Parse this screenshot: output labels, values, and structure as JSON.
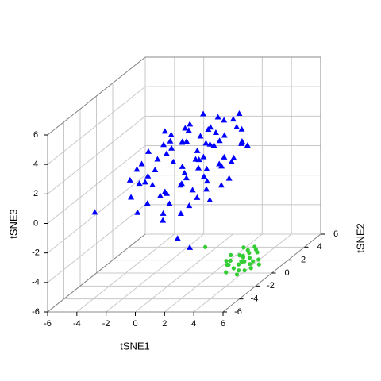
{
  "chart_data": {
    "type": "scatter3d",
    "xlabel": "tSNE1",
    "ylabel": "tSNE2",
    "zlabel": "tSNE3",
    "xlim": [
      -6,
      6
    ],
    "ylim": [
      -6,
      6
    ],
    "zlim": [
      -6,
      6
    ],
    "xticks": [
      -6,
      -4,
      -2,
      0,
      2,
      4,
      6
    ],
    "yticks": [
      -6,
      -4,
      -2,
      0,
      2,
      4,
      6
    ],
    "zticks": [
      -6,
      -4,
      -2,
      0,
      2,
      4,
      6
    ],
    "grid": true,
    "series": [
      {
        "color": "#0000ff",
        "marker": "triangle",
        "x": [
          -2.1,
          -1.5,
          -0.8,
          0.3,
          1.2,
          2.0,
          2.8,
          -3.0,
          -2.5,
          -1.0,
          0.0,
          0.9,
          1.8,
          3.1,
          -1.8,
          -0.5,
          0.6,
          1.5,
          2.4,
          -2.8,
          -1.2,
          0.2,
          1.0,
          2.2,
          3.3,
          -3.4,
          -2.0,
          -0.3,
          0.8,
          1.6,
          2.6,
          -1.6,
          -0.9,
          0.4,
          1.3,
          2.1,
          -2.3,
          -0.1,
          1.1,
          2.9,
          -3.2,
          -1.4,
          0.5,
          1.9,
          3.0,
          -2.6,
          -0.7,
          0.7,
          1.4,
          2.5,
          -1.9,
          -0.4,
          0.1,
          1.7,
          2.3,
          -2.9,
          -1.1,
          0.9,
          2.7,
          3.5,
          -5.0,
          -2.2,
          -0.6,
          1.0,
          2.0,
          2.4,
          2.8,
          -1.3,
          0.3,
          1.6,
          -0.2,
          1.2,
          -2.4,
          0.6,
          1.8,
          -1.7,
          0.0,
          2.2,
          -0.8,
          1.5
        ],
        "y": [
          0.5,
          -1.2,
          2.0,
          -0.5,
          1.5,
          -2.0,
          0.8,
          1.0,
          -0.3,
          2.5,
          -1.8,
          0.2,
          2.8,
          -1.0,
          -2.5,
          1.2,
          -0.8,
          2.2,
          0.0,
          -1.5,
          0.6,
          2.6,
          -2.2,
          1.0,
          -0.4,
          0.3,
          2.0,
          -1.6,
          1.8,
          -0.1,
          2.4,
          -0.7,
          1.4,
          0.9,
          -1.3,
          3.0,
          1.6,
          -2.4,
          0.4,
          1.9,
          -0.9,
          -2.0,
          1.1,
          -0.6,
          0.7,
          2.3,
          -1.1,
          2.9,
          -1.9,
          0.1,
          1.7,
          0.5,
          -2.8,
          1.3,
          -1.4,
          0.0,
          2.1,
          -0.2,
          -1.7,
          1.5,
          -2.0,
          -0.5,
          0.8,
          -2.6,
          -2.9,
          0.6,
          2.0,
          1.0,
          -1.0,
          0.3,
          2.7,
          -0.4,
          -1.2,
          1.6,
          -0.8,
          0.9,
          -0.3,
          2.5,
          -1.5,
          1.2
        ],
        "z": [
          1.5,
          0.5,
          2.8,
          1.0,
          2.0,
          0.0,
          1.2,
          1.8,
          0.3,
          3.0,
          -0.5,
          1.6,
          3.2,
          0.4,
          -0.8,
          2.4,
          0.8,
          3.4,
          1.4,
          -0.2,
          2.2,
          2.6,
          -1.0,
          2.9,
          0.6,
          0.9,
          2.5,
          0.1,
          3.1,
          1.1,
          2.7,
          1.3,
          2.3,
          1.9,
          0.2,
          3.5,
          2.0,
          -0.9,
          1.7,
          2.1,
          0.7,
          -0.4,
          2.8,
          0.5,
          1.5,
          2.6,
          0.0,
          3.3,
          -0.6,
          1.2,
          2.2,
          1.0,
          -1.2,
          2.4,
          0.3,
          1.4,
          2.9,
          1.8,
          -0.3,
          2.0,
          -1.0,
          0.8,
          2.5,
          -2.5,
          -3.0,
          1.6,
          1.9,
          1.1,
          0.4,
          2.6,
          3.6,
          1.3,
          0.6,
          2.1,
          0.9,
          1.7,
          0.2,
          2.8,
          -0.1,
          3.0
        ]
      },
      {
        "color": "#33cc33",
        "marker": "circle",
        "x": [
          4.0,
          4.5,
          5.0,
          5.5,
          4.2,
          4.8,
          5.2,
          5.8,
          3.8,
          4.4,
          5.0,
          5.6,
          4.1,
          4.7,
          5.3,
          5.9,
          4.3,
          4.9,
          5.4,
          3.9,
          4.6,
          5.1,
          5.7,
          4.0,
          4.5,
          5.0,
          5.5,
          2.0,
          4.8,
          5.3
        ],
        "y": [
          -1.5,
          -2.0,
          -1.0,
          -1.8,
          -2.4,
          -0.8,
          -1.3,
          -2.2,
          -1.1,
          -0.6,
          -2.5,
          -1.6,
          -1.9,
          -1.2,
          -0.7,
          -1.4,
          -0.9,
          -2.1,
          -2.3,
          -1.7,
          -1.0,
          -0.5,
          -1.1,
          -2.0,
          -1.4,
          -1.9,
          -0.9,
          -1.0,
          -1.6,
          -2.1
        ],
        "z": [
          -4.5,
          -4.8,
          -4.2,
          -4.6,
          -4.9,
          -4.1,
          -4.4,
          -4.7,
          -4.3,
          -4.0,
          -5.0,
          -4.5,
          -4.6,
          -4.3,
          -4.1,
          -4.8,
          -4.4,
          -4.9,
          -4.2,
          -4.7,
          -4.5,
          -4.0,
          -4.6,
          -4.3,
          -4.8,
          -4.4,
          -4.2,
          -3.8,
          -4.5,
          -4.9
        ]
      }
    ]
  }
}
